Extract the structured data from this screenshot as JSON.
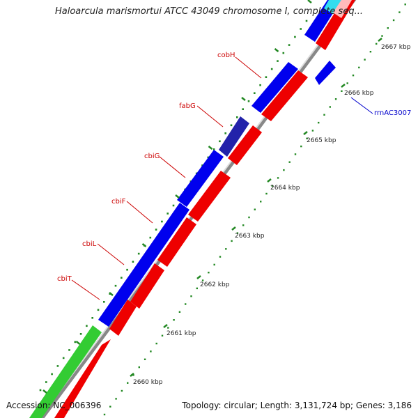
{
  "header": {
    "title": "Haloarcula marismortui ATCC 43049 chromosome I, complete seq..."
  },
  "footer": {
    "accession": "Accession: NC_006396",
    "topology": "Topology: circular; Length: 3,131,724 bp; Genes: 3,186"
  },
  "ticks": [
    {
      "label": "2660 kbp"
    },
    {
      "label": "2661 kbp"
    },
    {
      "label": "2662 kbp"
    },
    {
      "label": "2663 kbp"
    },
    {
      "label": "2664 kbp"
    },
    {
      "label": "2665 kbp"
    },
    {
      "label": "2666 kbp"
    },
    {
      "label": "2667 kbp"
    }
  ],
  "gene_labels": [
    {
      "name": "cbiT",
      "color": "#cc0000"
    },
    {
      "name": "cbiL",
      "color": "#cc0000"
    },
    {
      "name": "cbiF",
      "color": "#cc0000"
    },
    {
      "name": "cbiG",
      "color": "#cc0000"
    },
    {
      "name": "fabG",
      "color": "#cc0000"
    },
    {
      "name": "cobH",
      "color": "#cc0000"
    },
    {
      "name": "rrnAC3007",
      "color": "#0000cc"
    }
  ],
  "colors": {
    "forward_cds": "#0000ee",
    "reverse_cds": "#ee0000",
    "gene": "#33cc33",
    "ruler": "#999999",
    "tick": "#228822"
  }
}
